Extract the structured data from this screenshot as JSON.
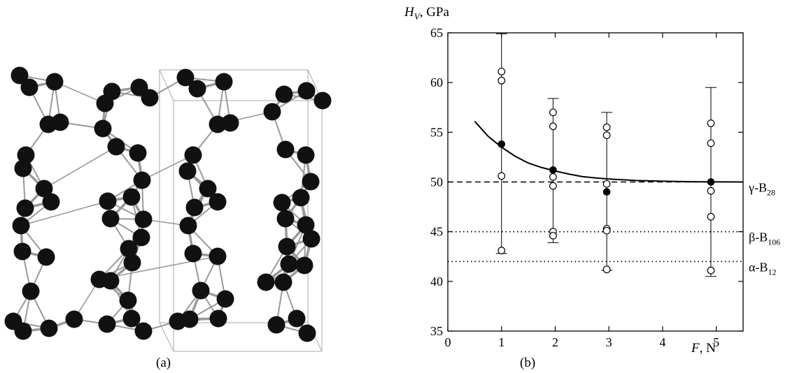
{
  "panels": {
    "a": {
      "label": "(a)"
    },
    "b": {
      "label": "(b)"
    }
  },
  "colors": {
    "atom": "#111111",
    "bond": "#9a9a9a",
    "cell": "#aaaaaa",
    "axis": "#000000"
  },
  "chart_data": {
    "type": "scatter",
    "title": "",
    "ylabel": "H_V, GPa",
    "ylabel_main": "H",
    "ylabel_sub": "V",
    "ylabel_rest": ", GPa",
    "xlabel": "F, N",
    "xlabel_main": "F",
    "xlabel_rest": ", N",
    "xlim": [
      0,
      5.5
    ],
    "ylim": [
      35,
      65
    ],
    "xticks": [
      0,
      1,
      2,
      3,
      4,
      5
    ],
    "xtick_labels": [
      "0",
      "1",
      "2",
      "3",
      "4",
      "5"
    ],
    "yticks": [
      35,
      40,
      45,
      50,
      55,
      60,
      65
    ],
    "ytick_labels": [
      "35",
      "40",
      "45",
      "50",
      "55",
      "60",
      "65"
    ],
    "grid": false,
    "series": [
      {
        "kind": "individual",
        "marker": "open-circle",
        "points": [
          {
            "x": 1,
            "y": 61.1
          },
          {
            "x": 1,
            "y": 60.2
          },
          {
            "x": 1,
            "y": 50.6
          },
          {
            "x": 1,
            "y": 43.1
          },
          {
            "x": 1.96,
            "y": 57.0
          },
          {
            "x": 1.96,
            "y": 55.6
          },
          {
            "x": 1.96,
            "y": 50.5
          },
          {
            "x": 1.96,
            "y": 49.6
          },
          {
            "x": 1.96,
            "y": 45.0
          },
          {
            "x": 1.96,
            "y": 44.6
          },
          {
            "x": 2.96,
            "y": 55.5
          },
          {
            "x": 2.96,
            "y": 54.7
          },
          {
            "x": 2.96,
            "y": 49.8
          },
          {
            "x": 2.96,
            "y": 45.3
          },
          {
            "x": 2.96,
            "y": 45.1
          },
          {
            "x": 2.96,
            "y": 41.2
          },
          {
            "x": 4.9,
            "y": 55.9
          },
          {
            "x": 4.9,
            "y": 53.9
          },
          {
            "x": 4.9,
            "y": 49.1
          },
          {
            "x": 4.9,
            "y": 46.5
          },
          {
            "x": 4.9,
            "y": 41.1
          }
        ]
      },
      {
        "kind": "mean",
        "marker": "filled-circle",
        "points": [
          {
            "x": 1,
            "y": 53.8,
            "err_low": 42.8,
            "err_high": 64.9
          },
          {
            "x": 1.96,
            "y": 51.2,
            "err_low": 43.9,
            "err_high": 58.4
          },
          {
            "x": 2.96,
            "y": 49.0,
            "err_low": 41.1,
            "err_high": 57.0
          },
          {
            "x": 4.9,
            "y": 50.0,
            "err_low": 40.5,
            "err_high": 59.5
          }
        ]
      },
      {
        "kind": "fit-curve",
        "style": "solid",
        "points": [
          {
            "x": 0.5,
            "y": 56.1
          },
          {
            "x": 0.75,
            "y": 54.6
          },
          {
            "x": 1.0,
            "y": 53.5
          },
          {
            "x": 1.25,
            "y": 52.6
          },
          {
            "x": 1.5,
            "y": 51.9
          },
          {
            "x": 1.75,
            "y": 51.45
          },
          {
            "x": 2.0,
            "y": 51.1
          },
          {
            "x": 2.25,
            "y": 50.8
          },
          {
            "x": 2.5,
            "y": 50.55
          },
          {
            "x": 2.75,
            "y": 50.4
          },
          {
            "x": 3.0,
            "y": 50.3
          },
          {
            "x": 3.5,
            "y": 50.15
          },
          {
            "x": 4.0,
            "y": 50.08
          },
          {
            "x": 4.5,
            "y": 50.03
          },
          {
            "x": 5.0,
            "y": 50.01
          },
          {
            "x": 5.5,
            "y": 50.0
          }
        ]
      }
    ],
    "reference_lines": [
      {
        "y": 50,
        "style": "dashed",
        "label_main": "γ-B",
        "label_sub": "28"
      },
      {
        "y": 45,
        "style": "dotted",
        "label_main": "β-B",
        "label_sub": "106"
      },
      {
        "y": 42,
        "style": "dotted",
        "label_main": "α-B",
        "label_sub": "12"
      }
    ]
  }
}
